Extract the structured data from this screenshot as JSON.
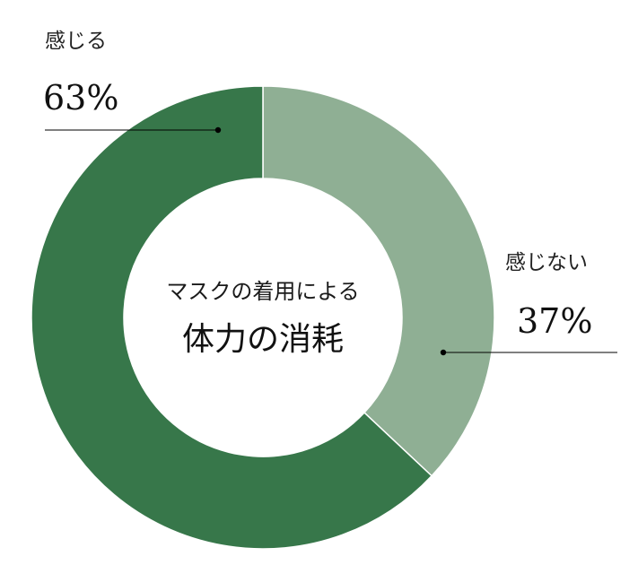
{
  "chart_data": {
    "type": "pie",
    "center_text": [
      "マスクの着用による",
      "体力の消耗"
    ],
    "slices": [
      {
        "label": "感じない",
        "value": 37,
        "value_label": "37%",
        "color": "#8faf94"
      },
      {
        "label": "感じる",
        "value": 63,
        "value_label": "63%",
        "color": "#37774a"
      }
    ],
    "colors": {
      "background": "#ffffff",
      "separator": "#ffffff",
      "leader_line": "#000000"
    }
  }
}
